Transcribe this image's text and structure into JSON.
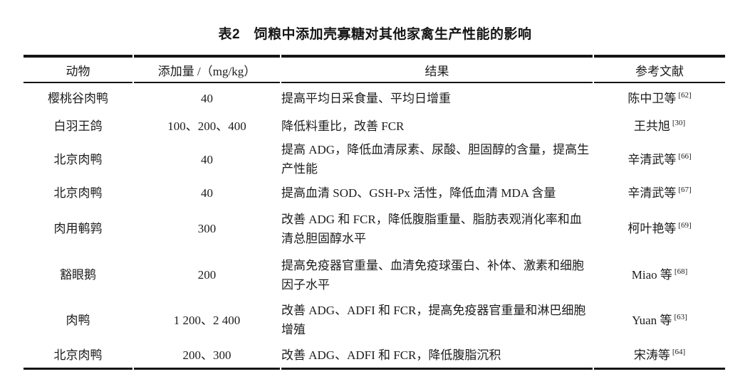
{
  "title": "表2　饲粮中添加壳寡糖对其他家禽生产性能的影响",
  "table": {
    "headers": [
      "动物",
      "添加量 /（mg/kg）",
      "结果",
      "参考文献"
    ],
    "rows": [
      {
        "animal": "樱桃谷肉鸭",
        "dose": "40",
        "result": "提高平均日采食量、平均日增重",
        "ref": "陈中卫等",
        "ref_num": "[62]"
      },
      {
        "animal": "白羽王鸽",
        "dose": "100、200、400",
        "result": "降低料重比，改善 FCR",
        "ref": "王共旭",
        "ref_num": "[30]"
      },
      {
        "animal": "北京肉鸭",
        "dose": "40",
        "result": "提高 ADG，降低血清尿素、尿酸、胆固醇的含量，提高生产性能",
        "ref": "辛清武等",
        "ref_num": "[66]"
      },
      {
        "animal": "北京肉鸭",
        "dose": "40",
        "result": "提高血清 SOD、GSH-Px 活性，降低血清 MDA 含量",
        "ref": "辛清武等",
        "ref_num": "[67]"
      },
      {
        "animal": "肉用鹌鹑",
        "dose": "300",
        "result": "改善 ADG 和 FCR，降低腹脂重量、脂肪表观消化率和血清总胆固醇水平",
        "ref": "柯叶艳等",
        "ref_num": "[69]"
      },
      {
        "animal": "豁眼鹅",
        "dose": "200",
        "result": "提高免疫器官重量、血清免疫球蛋白、补体、激素和细胞因子水平",
        "ref": "Miao 等",
        "ref_num": "[68]"
      },
      {
        "animal": "肉鸭",
        "dose": "1 200、2 400",
        "result": "改善 ADG、ADFI 和 FCR，提高免疫器官重量和淋巴细胞增殖",
        "ref": "Yuan 等",
        "ref_num": "[63]"
      },
      {
        "animal": "北京肉鸭",
        "dose": "200、300",
        "result": "改善 ADG、ADFI 和 FCR，降低腹脂沉积",
        "ref": "宋涛等",
        "ref_num": "[64]"
      }
    ]
  }
}
